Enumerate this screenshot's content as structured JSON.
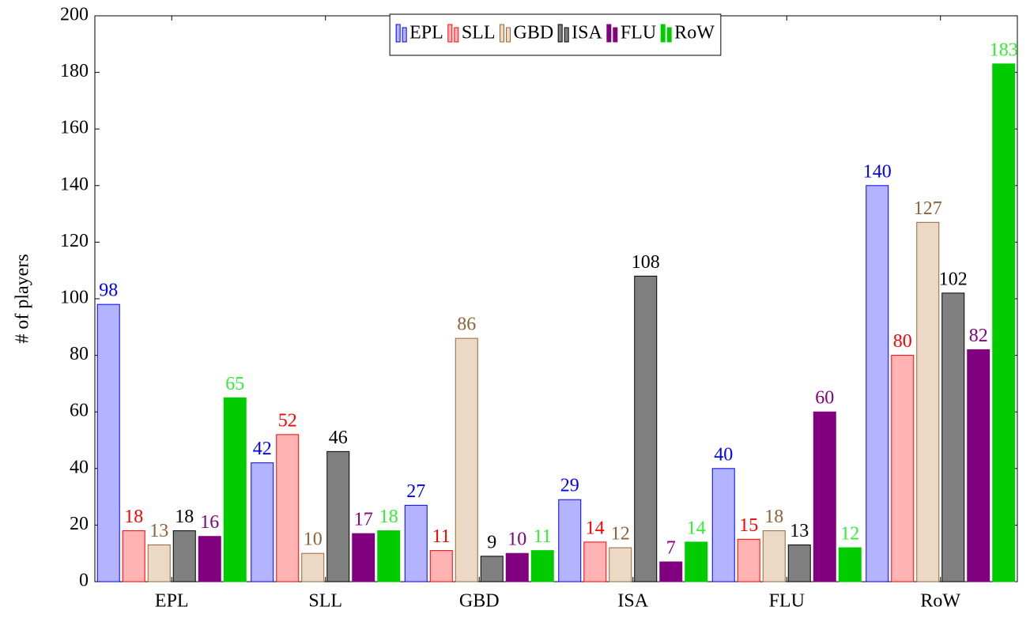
{
  "chart_data": {
    "type": "bar",
    "ylabel": "# of players",
    "categories": [
      "EPL",
      "SLL",
      "GBD",
      "ISA",
      "FLU",
      "RoW"
    ],
    "series": [
      {
        "name": "EPL",
        "color": "#b3b3ff",
        "edge_color": "#0000ff",
        "label_color": "#0000ff",
        "values": [
          98,
          42,
          27,
          29,
          40,
          140
        ]
      },
      {
        "name": "SLL",
        "color": "#ffb3b3",
        "edge_color": "#ff0000",
        "label_color": "#ff0000",
        "values": [
          18,
          52,
          11,
          14,
          15,
          80
        ]
      },
      {
        "name": "GBD",
        "color": "#ebd9c6",
        "edge_color": "#996633",
        "label_color": "#8c6239",
        "values": [
          13,
          10,
          86,
          12,
          18,
          127
        ]
      },
      {
        "name": "ISA",
        "color": "#808080",
        "edge_color": "#000000",
        "label_color": "#000000",
        "values": [
          18,
          46,
          9,
          108,
          13,
          102
        ]
      },
      {
        "name": "FLU",
        "color": "#800080",
        "edge_color": "#800080",
        "label_color": "#800080",
        "values": [
          16,
          17,
          10,
          7,
          60,
          82
        ]
      },
      {
        "name": "RoW",
        "color": "#00cc00",
        "edge_color": "#00cc00",
        "label_color": "#33ee33",
        "values": [
          65,
          18,
          11,
          14,
          12,
          183
        ]
      }
    ],
    "ylim": [
      0,
      200
    ],
    "yticks": [
      0,
      20,
      40,
      60,
      80,
      100,
      120,
      140,
      160,
      180,
      200
    ],
    "legend": "top"
  }
}
